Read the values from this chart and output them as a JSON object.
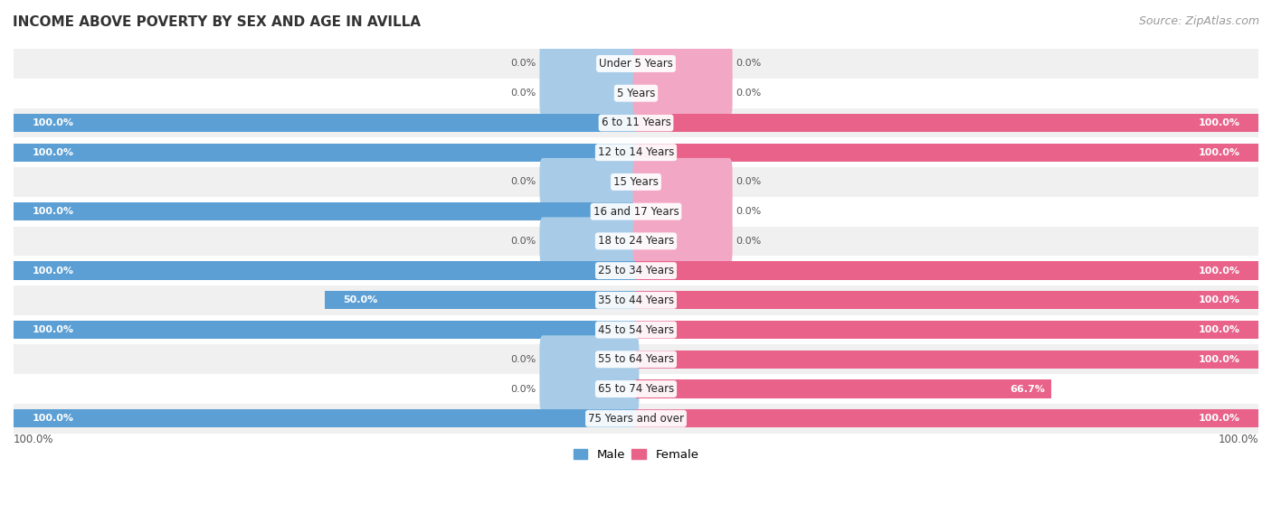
{
  "title": "INCOME ABOVE POVERTY BY SEX AND AGE IN AVILLA",
  "source": "Source: ZipAtlas.com",
  "categories": [
    "Under 5 Years",
    "5 Years",
    "6 to 11 Years",
    "12 to 14 Years",
    "15 Years",
    "16 and 17 Years",
    "18 to 24 Years",
    "25 to 34 Years",
    "35 to 44 Years",
    "45 to 54 Years",
    "55 to 64 Years",
    "65 to 74 Years",
    "75 Years and over"
  ],
  "male_values": [
    0.0,
    0.0,
    100.0,
    100.0,
    0.0,
    100.0,
    0.0,
    100.0,
    50.0,
    100.0,
    0.0,
    0.0,
    100.0
  ],
  "female_values": [
    0.0,
    0.0,
    100.0,
    100.0,
    0.0,
    0.0,
    0.0,
    100.0,
    100.0,
    100.0,
    100.0,
    66.7,
    100.0
  ],
  "male_color_full": "#5b9fd4",
  "male_color_stub": "#a8cce8",
  "female_color_full": "#e8628a",
  "female_color_stub": "#f2a8c4",
  "row_bg_white": "#ffffff",
  "row_bg_gray": "#f0f0f0",
  "stub_size": 15,
  "label_fontsize": 8.5,
  "value_fontsize": 8.0,
  "title_fontsize": 11,
  "source_fontsize": 9
}
